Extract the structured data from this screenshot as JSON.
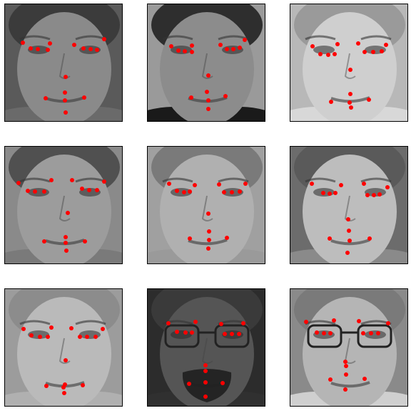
{
  "grid": {
    "rows": 3,
    "cols": 3
  },
  "marker_color": "#ff0000",
  "image_style": "grayscale",
  "panels": [
    {
      "index": 0,
      "subject": "face-with-keypoints"
    },
    {
      "index": 1,
      "subject": "face-with-keypoints"
    },
    {
      "index": 2,
      "subject": "face-with-keypoints"
    },
    {
      "index": 3,
      "subject": "face-with-keypoints"
    },
    {
      "index": 4,
      "subject": "face-with-keypoints"
    },
    {
      "index": 5,
      "subject": "face-with-keypoints"
    },
    {
      "index": 6,
      "subject": "face-with-keypoints"
    },
    {
      "index": 7,
      "subject": "face-with-keypoints"
    },
    {
      "index": 8,
      "subject": "face-with-keypoints"
    }
  ]
}
